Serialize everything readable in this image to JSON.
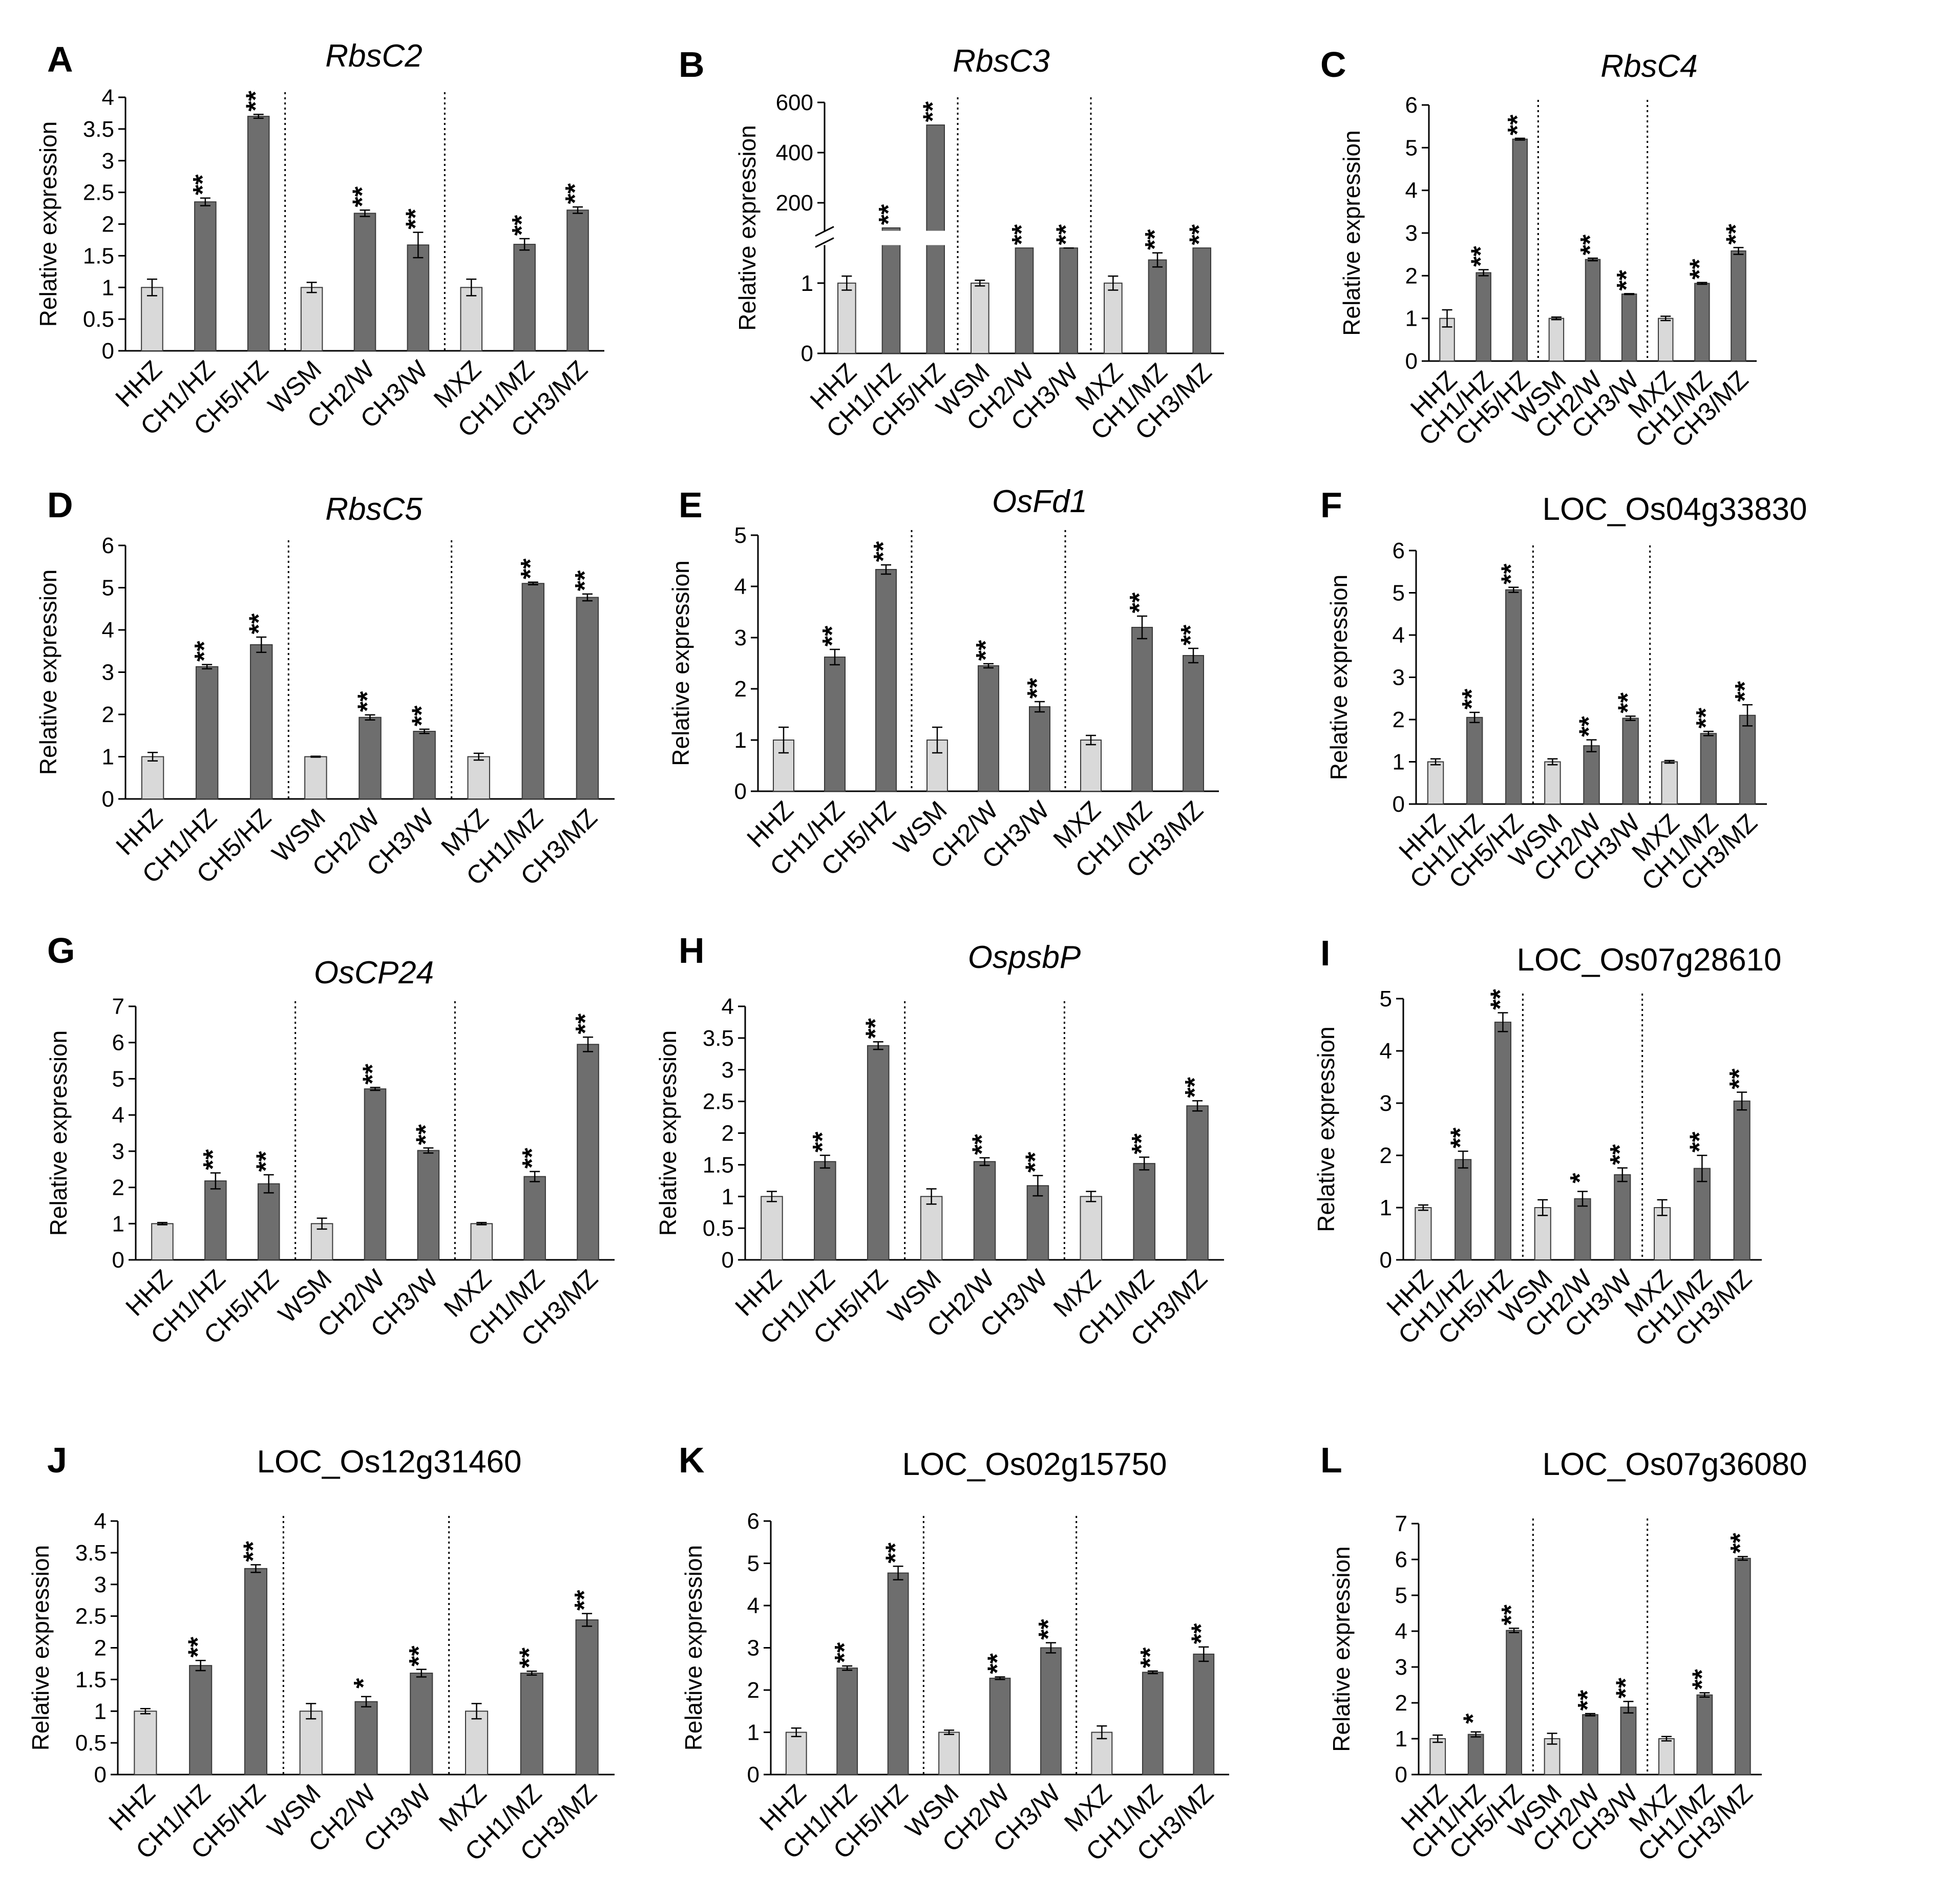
{
  "chart_data": [
    {
      "panel": "A",
      "title": "RbsC2",
      "title_italic": true,
      "type": "bar",
      "ylabel": "Relative expression",
      "ylim": [
        0,
        4
      ],
      "yticks": [
        "0",
        "0.5",
        "1",
        "1.5",
        "2",
        "2.5",
        "3",
        "3.5",
        "4"
      ],
      "categories": [
        "HHZ",
        "CH1/HZ",
        "CH5/HZ",
        "WSM",
        "CH2/W",
        "CH3/W",
        "MXZ",
        "CH1/MZ",
        "CH3/MZ"
      ],
      "values": [
        1.0,
        2.35,
        3.7,
        1.0,
        2.17,
        1.67,
        1.0,
        1.68,
        2.22
      ],
      "errors": [
        0.13,
        0.06,
        0.03,
        0.08,
        0.05,
        0.2,
        0.13,
        0.09,
        0.05
      ],
      "significance": [
        "",
        "**",
        "**",
        "",
        "**",
        "**",
        "",
        "**",
        "**"
      ]
    },
    {
      "panel": "B",
      "title": "RbsC3",
      "title_italic": true,
      "type": "bar",
      "ylabel": "Relative expression",
      "broken_axis": true,
      "yticks_lower": [
        "0",
        "1"
      ],
      "yticks_upper": [
        "200",
        "400",
        "600"
      ],
      "categories": [
        "HHZ",
        "CH1/HZ",
        "CH5/HZ",
        "WSM",
        "CH2/W",
        "CH3/W",
        "MXZ",
        "CH1/MZ",
        "CH3/MZ"
      ],
      "values": [
        1.0,
        100,
        510,
        1.0,
        40,
        12,
        1.0,
        1.33,
        35
      ],
      "errors": [
        0.1,
        0,
        0,
        0.04,
        0,
        0.05,
        0.1,
        0.1,
        0
      ],
      "significance": [
        "",
        "**",
        "**",
        "",
        "**",
        "**",
        "",
        "**",
        "**"
      ]
    },
    {
      "panel": "C",
      "title": "RbsC4",
      "title_italic": true,
      "type": "bar",
      "ylabel": "Relative expression",
      "ylim": [
        0,
        6
      ],
      "yticks": [
        "0",
        "1",
        "2",
        "3",
        "4",
        "5",
        "6"
      ],
      "categories": [
        "HHZ",
        "CH1/HZ",
        "CH5/HZ",
        "WSM",
        "CH2/W",
        "CH3/W",
        "MXZ",
        "CH1/MZ",
        "CH3/MZ"
      ],
      "values": [
        1.0,
        2.07,
        5.2,
        1.0,
        2.38,
        1.57,
        1.0,
        1.82,
        2.58
      ],
      "errors": [
        0.2,
        0.07,
        0.02,
        0.03,
        0.03,
        0.01,
        0.05,
        0.02,
        0.08
      ],
      "significance": [
        "",
        "**",
        "**",
        "",
        "**",
        "**",
        "",
        "**",
        "**"
      ]
    },
    {
      "panel": "D",
      "title": "RbsC5",
      "title_italic": true,
      "type": "bar",
      "ylabel": "Relative expression",
      "ylim": [
        0,
        6
      ],
      "yticks": [
        "0",
        "1",
        "2",
        "3",
        "4",
        "5",
        "6"
      ],
      "categories": [
        "HHZ",
        "CH1/HZ",
        "CH5/HZ",
        "WSM",
        "CH2/W",
        "CH3/W",
        "MXZ",
        "CH1/MZ",
        "CH3/MZ"
      ],
      "values": [
        1.0,
        3.13,
        3.65,
        1.0,
        1.93,
        1.6,
        1.0,
        5.1,
        4.77
      ],
      "errors": [
        0.1,
        0.05,
        0.18,
        0.01,
        0.06,
        0.05,
        0.08,
        0.03,
        0.08
      ],
      "significance": [
        "",
        "**",
        "**",
        "",
        "**",
        "**",
        "",
        "**",
        "**"
      ]
    },
    {
      "panel": "E",
      "title": "OsFd1",
      "title_italic": true,
      "type": "bar",
      "ylabel": "Relative expression",
      "ylim": [
        0,
        5
      ],
      "yticks": [
        "0",
        "1",
        "2",
        "3",
        "4",
        "5"
      ],
      "categories": [
        "HHZ",
        "CH1/HZ",
        "CH5/HZ",
        "WSM",
        "CH2/W",
        "CH3/W",
        "MXZ",
        "CH1/MZ",
        "CH3/MZ"
      ],
      "values": [
        1.0,
        2.62,
        4.33,
        1.0,
        2.45,
        1.65,
        1.0,
        3.2,
        2.65
      ],
      "errors": [
        0.25,
        0.15,
        0.09,
        0.25,
        0.04,
        0.1,
        0.09,
        0.22,
        0.14
      ],
      "significance": [
        "",
        "**",
        "**",
        "",
        "**",
        "**",
        "",
        "**",
        "**"
      ]
    },
    {
      "panel": "F",
      "title": "LOC_Os04g33830",
      "title_italic": false,
      "type": "bar",
      "ylabel": "Relative expression",
      "ylim": [
        0,
        6
      ],
      "yticks": [
        "0",
        "1",
        "2",
        "3",
        "4",
        "5",
        "6"
      ],
      "categories": [
        "HHZ",
        "CH1/HZ",
        "CH5/HZ",
        "WSM",
        "CH2/W",
        "CH3/W",
        "MXZ",
        "CH1/MZ",
        "CH3/MZ"
      ],
      "values": [
        1.0,
        2.05,
        5.07,
        1.0,
        1.38,
        2.03,
        1.0,
        1.67,
        2.1
      ],
      "errors": [
        0.07,
        0.12,
        0.06,
        0.07,
        0.14,
        0.05,
        0.03,
        0.05,
        0.25
      ],
      "significance": [
        "",
        "**",
        "**",
        "",
        "**",
        "**",
        "",
        "**",
        "**"
      ]
    },
    {
      "panel": "G",
      "title": "OsCP24",
      "title_italic": true,
      "type": "bar",
      "ylabel": "Relative expression",
      "ylim": [
        0,
        7
      ],
      "yticks": [
        "0",
        "1",
        "2",
        "3",
        "4",
        "5",
        "6",
        "7"
      ],
      "categories": [
        "HHZ",
        "CH1/HZ",
        "CH5/HZ",
        "WSM",
        "CH2/W",
        "CH3/W",
        "MXZ",
        "CH1/MZ",
        "CH3/MZ"
      ],
      "values": [
        1.0,
        2.18,
        2.1,
        1.0,
        4.72,
        3.02,
        1.0,
        2.3,
        5.95
      ],
      "errors": [
        0.03,
        0.22,
        0.25,
        0.15,
        0.04,
        0.07,
        0.03,
        0.14,
        0.2
      ],
      "significance": [
        "",
        "**",
        "**",
        "",
        "**",
        "**",
        "",
        "**",
        "**"
      ]
    },
    {
      "panel": "H",
      "title": "OspsbP",
      "title_italic": true,
      "type": "bar",
      "ylabel": "Relative expression",
      "ylim": [
        0,
        4
      ],
      "yticks": [
        "0",
        "0.5",
        "1",
        "1.5",
        "2",
        "2.5",
        "3",
        "3.5",
        "4"
      ],
      "categories": [
        "HHZ",
        "CH1/HZ",
        "CH5/HZ",
        "WSM",
        "CH2/W",
        "CH3/W",
        "MXZ",
        "CH1/MZ",
        "CH3/MZ"
      ],
      "values": [
        1.0,
        1.55,
        3.38,
        1.0,
        1.55,
        1.17,
        1.0,
        1.52,
        2.43
      ],
      "errors": [
        0.08,
        0.1,
        0.06,
        0.12,
        0.06,
        0.16,
        0.08,
        0.1,
        0.08
      ],
      "significance": [
        "",
        "**",
        "**",
        "",
        "**",
        "**",
        "",
        "**",
        "**"
      ]
    },
    {
      "panel": "I",
      "title": "LOC_Os07g28610",
      "title_italic": false,
      "type": "bar",
      "ylabel": "Relative expression",
      "ylim": [
        0,
        5
      ],
      "yticks": [
        "0",
        "1",
        "2",
        "3",
        "4",
        "5"
      ],
      "categories": [
        "HHZ",
        "CH1/HZ",
        "CH5/HZ",
        "WSM",
        "CH2/W",
        "CH3/W",
        "MXZ",
        "CH1/MZ",
        "CH3/MZ"
      ],
      "values": [
        1.0,
        1.92,
        4.55,
        1.0,
        1.17,
        1.63,
        1.0,
        1.75,
        3.04
      ],
      "errors": [
        0.05,
        0.16,
        0.18,
        0.15,
        0.14,
        0.13,
        0.15,
        0.25,
        0.17
      ],
      "significance": [
        "",
        "**",
        "**",
        "",
        "*",
        "**",
        "",
        "**",
        "**"
      ]
    },
    {
      "panel": "J",
      "title": "LOC_Os12g31460",
      "title_italic": false,
      "type": "bar",
      "ylabel": "Relative expression",
      "ylim": [
        0,
        4
      ],
      "yticks": [
        "0",
        "0.5",
        "1",
        "1.5",
        "2",
        "2.5",
        "3",
        "3.5",
        "4"
      ],
      "categories": [
        "HHZ",
        "CH1/HZ",
        "CH5/HZ",
        "WSM",
        "CH2/W",
        "CH3/W",
        "MXZ",
        "CH1/MZ",
        "CH3/MZ"
      ],
      "values": [
        1.0,
        1.72,
        3.25,
        1.0,
        1.15,
        1.6,
        1.0,
        1.6,
        2.44
      ],
      "errors": [
        0.04,
        0.08,
        0.06,
        0.12,
        0.08,
        0.06,
        0.12,
        0.03,
        0.1
      ],
      "significance": [
        "",
        "**",
        "**",
        "",
        "*",
        "**",
        "",
        "**",
        "**"
      ]
    },
    {
      "panel": "K",
      "title": "LOC_Os02g15750",
      "title_italic": false,
      "type": "bar",
      "ylabel": "Relative expression",
      "ylim": [
        0,
        6
      ],
      "yticks": [
        "0",
        "1",
        "2",
        "3",
        "4",
        "5",
        "6"
      ],
      "categories": [
        "HHZ",
        "CH1/HZ",
        "CH5/HZ",
        "WSM",
        "CH2/W",
        "CH3/W",
        "MXZ",
        "CH1/MZ",
        "CH3/MZ"
      ],
      "values": [
        1.0,
        2.52,
        4.77,
        1.0,
        2.28,
        3.0,
        1.0,
        2.42,
        2.85
      ],
      "errors": [
        0.1,
        0.05,
        0.16,
        0.05,
        0.03,
        0.12,
        0.15,
        0.03,
        0.17
      ],
      "significance": [
        "",
        "**",
        "**",
        "",
        "**",
        "**",
        "",
        "**",
        "**"
      ]
    },
    {
      "panel": "L",
      "title": "LOC_Os07g36080",
      "title_italic": false,
      "type": "bar",
      "ylabel": "Relative expression",
      "ylim": [
        0,
        7
      ],
      "yticks": [
        "0",
        "1",
        "2",
        "3",
        "4",
        "5",
        "6",
        "7"
      ],
      "categories": [
        "HHZ",
        "CH1/HZ",
        "CH5/HZ",
        "WSM",
        "CH2/W",
        "CH3/W",
        "MXZ",
        "CH1/MZ",
        "CH3/MZ"
      ],
      "values": [
        1.0,
        1.12,
        4.02,
        1.0,
        1.67,
        1.88,
        1.0,
        2.22,
        6.03
      ],
      "errors": [
        0.1,
        0.07,
        0.06,
        0.15,
        0.03,
        0.16,
        0.06,
        0.06,
        0.05
      ],
      "significance": [
        "",
        "*",
        "**",
        "",
        "**",
        "**",
        "",
        "**",
        "**"
      ]
    }
  ],
  "colors": {
    "control_bar": "#d9d9d9",
    "treated_bar": "#6e6e6e",
    "bar_edge": "#3a3a3a",
    "axis": "#000000"
  }
}
